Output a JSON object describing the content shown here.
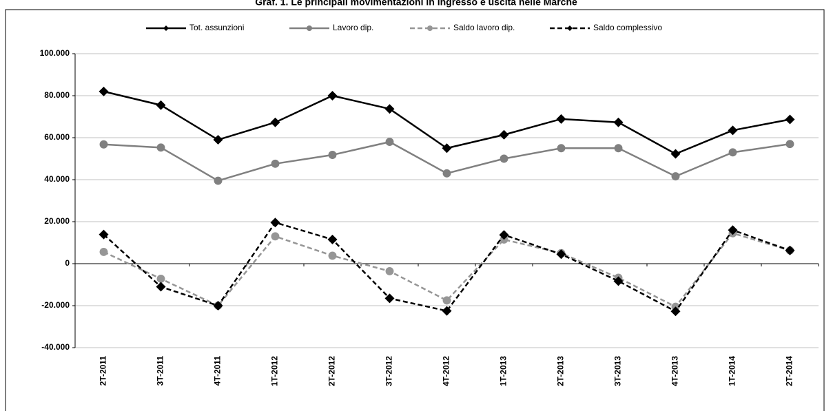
{
  "chart_data": {
    "type": "line",
    "title": "Graf. 1. Le principali movimentazioni in ingresso e uscita nelle Marche",
    "categories": [
      "2T-2011",
      "3T-2011",
      "4T-2011",
      "1T-2012",
      "2T-2012",
      "3T-2012",
      "4T-2012",
      "1T-2013",
      "2T-2013",
      "3T-2013",
      "4T-2013",
      "1T-2014",
      "2T-2014"
    ],
    "series": [
      {
        "name": "Tot. assunzioni",
        "color": "#000000",
        "dash": "solid",
        "marker": "diamond",
        "values": [
          82000,
          75500,
          59000,
          67300,
          80000,
          73700,
          55000,
          61400,
          68900,
          67300,
          52300,
          63500,
          68700
        ]
      },
      {
        "name": "Lavoro dip.",
        "color": "#808080",
        "dash": "solid",
        "marker": "circle",
        "values": [
          56800,
          55300,
          39500,
          47600,
          51800,
          58000,
          43000,
          50000,
          55000,
          55000,
          41600,
          53000,
          57000
        ]
      },
      {
        "name": "Saldo lavoro dip.",
        "color": "#969696",
        "dash": "dashed",
        "marker": "circle",
        "values": [
          5600,
          -7200,
          -20000,
          13000,
          3800,
          -3600,
          -17500,
          11500,
          5000,
          -6700,
          -20500,
          14500,
          6300
        ]
      },
      {
        "name": "Saldo complessivo",
        "color": "#000000",
        "dash": "dashed",
        "marker": "diamond",
        "values": [
          13900,
          -11000,
          -20000,
          19600,
          11500,
          -16500,
          -22500,
          13700,
          4500,
          -8300,
          -22700,
          16000,
          6300
        ]
      }
    ],
    "ylim": [
      -40000,
      100000
    ],
    "yticks": [
      {
        "value": -40000,
        "label": "-40.000"
      },
      {
        "value": -20000,
        "label": "-20.000"
      },
      0,
      {
        "value": 20000,
        "label": "20.000"
      },
      {
        "value": 40000,
        "label": "40.000"
      },
      {
        "value": 60000,
        "label": "60.000"
      },
      {
        "value": 80000,
        "label": "80.000"
      },
      {
        "value": 100000,
        "label": "100.000"
      }
    ],
    "grid": true,
    "legend": "top"
  }
}
